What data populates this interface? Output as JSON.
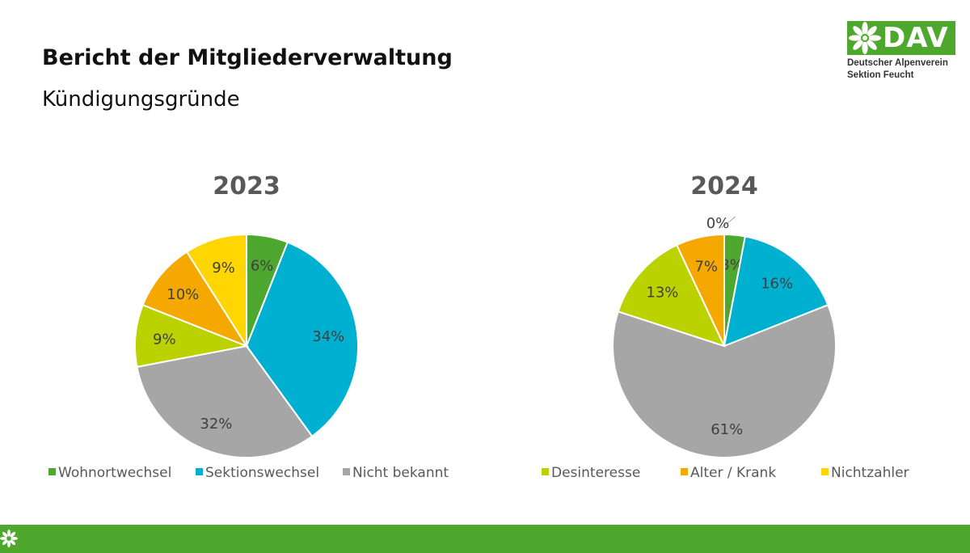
{
  "header": {
    "title": "Bericht der Mitgliederverwaltung",
    "subtitle": "Kündigungsgründe"
  },
  "logo": {
    "word": "DAV",
    "line1": "Deutscher Alpenverein",
    "line2": "Sektion Feucht",
    "icon": "edelweiss-icon"
  },
  "colors": {
    "brand_green": "#4ea82e",
    "label_text": "#404040",
    "title_text": "#595959"
  },
  "chart_data": [
    {
      "type": "pie",
      "title": "2023",
      "categories": [
        "Wohnortwechsel",
        "Sektionswechsel",
        "Nicht bekannt",
        "Desinteresse",
        "Alter / Krank",
        "Nichtzahler"
      ],
      "values": [
        6,
        34,
        32,
        9,
        10,
        9
      ],
      "labels": [
        "6%",
        "34%",
        "32%",
        "9%",
        "10%",
        "9%"
      ],
      "colors": [
        "#4ea72e",
        "#00b0d0",
        "#a6a6a6",
        "#bcd100",
        "#f5a800",
        "#ffd600"
      ],
      "legend": "bottom"
    },
    {
      "type": "pie",
      "title": "2024",
      "categories": [
        "Wohnortwechsel",
        "Sektionswechsel",
        "Nicht bekannt",
        "Desinteresse",
        "Alter / Krank",
        "Nichtzahler"
      ],
      "values": [
        3,
        16,
        61,
        13,
        7,
        0
      ],
      "labels": [
        "3%",
        "16%",
        "61%",
        "13%",
        "7%",
        "0%"
      ],
      "colors": [
        "#4ea72e",
        "#00b0d0",
        "#a6a6a6",
        "#bcd100",
        "#f5a800",
        "#ffd600"
      ],
      "legend": "bottom"
    }
  ]
}
